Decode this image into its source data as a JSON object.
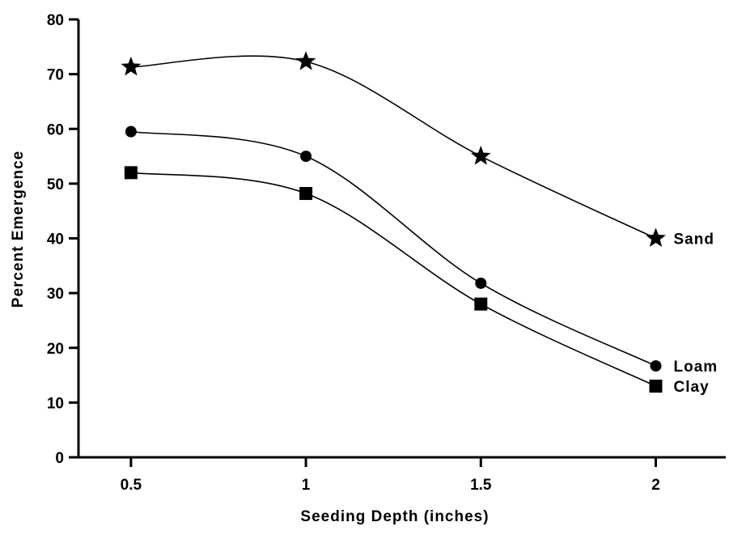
{
  "chart_data": {
    "type": "line",
    "title": "",
    "xlabel": "Seeding Depth (inches)",
    "ylabel": "Percent Emergence",
    "x": [
      0.5,
      1,
      1.5,
      2
    ],
    "x_ticks": [
      "0.5",
      "1",
      "1.5",
      "2"
    ],
    "xlim": [
      0.35,
      2.2
    ],
    "ylim": [
      0,
      80
    ],
    "y_ticks": [
      0,
      10,
      20,
      30,
      40,
      50,
      60,
      70,
      80
    ],
    "grid": false,
    "legend": "none; series labeled at line ends",
    "series": [
      {
        "name": "Sand",
        "marker": "star",
        "values": [
          71.3,
          72.3,
          55.0,
          40.0
        ],
        "color": "#000000"
      },
      {
        "name": "Loam",
        "marker": "circle",
        "values": [
          59.5,
          55.0,
          31.8,
          16.7
        ],
        "color": "#000000"
      },
      {
        "name": "Clay",
        "marker": "square",
        "values": [
          52.0,
          48.2,
          28.0,
          13.0
        ],
        "color": "#000000"
      }
    ]
  }
}
